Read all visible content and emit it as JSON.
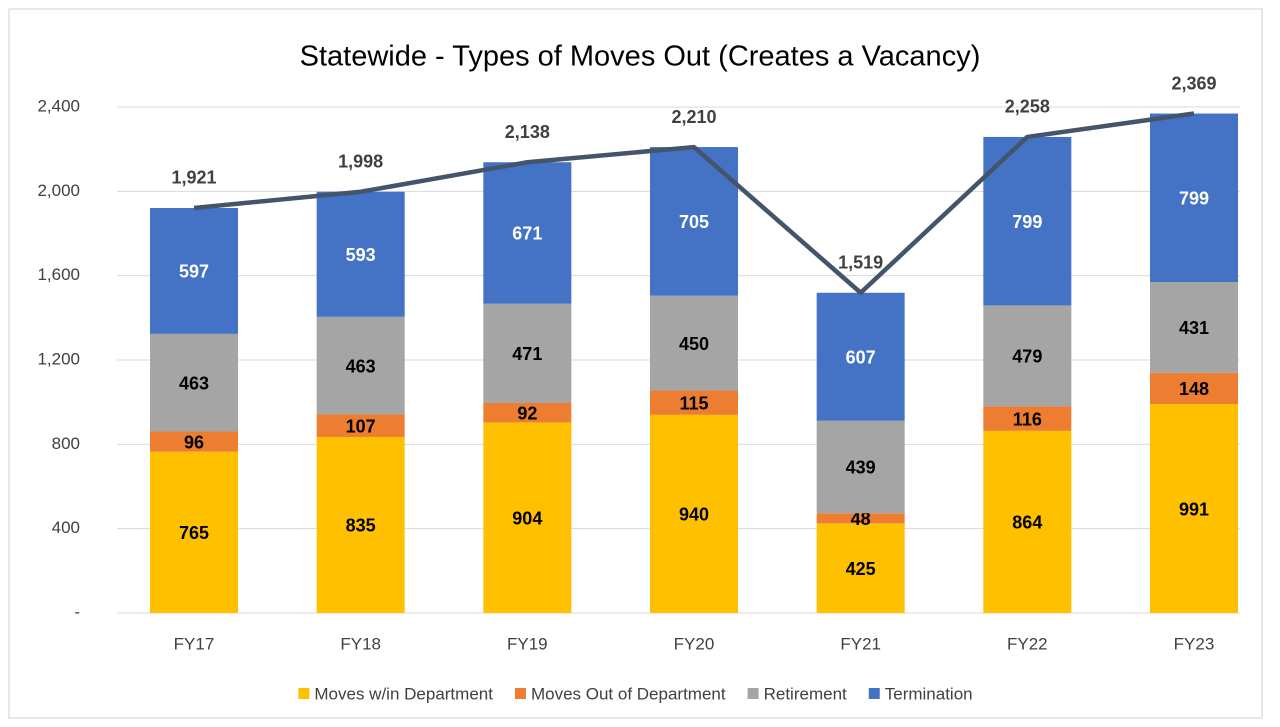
{
  "chart_data": {
    "type": "stacked-bar-line",
    "title": "Statewide - Types of Moves Out (Creates a Vacancy)",
    "categories": [
      "FY17",
      "FY18",
      "FY19",
      "FY20",
      "FY21",
      "FY22",
      "FY23"
    ],
    "series": [
      {
        "name": "Moves w/in Department",
        "color": "#ffc000",
        "values": [
          765,
          835,
          904,
          940,
          425,
          864,
          991
        ]
      },
      {
        "name": "Moves Out of Department",
        "color": "#ed7d31",
        "values": [
          96,
          107,
          92,
          115,
          48,
          116,
          148
        ]
      },
      {
        "name": "Retirement",
        "color": "#a5a5a5",
        "values": [
          463,
          463,
          471,
          450,
          439,
          479,
          431
        ]
      },
      {
        "name": "Termination",
        "color": "#4472c4",
        "values": [
          597,
          593,
          671,
          705,
          607,
          799,
          799
        ]
      }
    ],
    "total": {
      "color": "#44546a",
      "values": [
        1921,
        1998,
        2138,
        2210,
        1519,
        2258,
        2369
      ],
      "value_labels": [
        "1,921",
        "1,998",
        "2,138",
        "2,210",
        "1,519",
        "2,258",
        "2,369"
      ]
    },
    "ylim": [
      0,
      2400
    ],
    "yticks": [
      {
        "value": 0,
        "label": "-"
      },
      400,
      800,
      {
        "value": 1200,
        "label": "1,200"
      },
      {
        "value": 1600,
        "label": "1,600"
      },
      {
        "value": 2000,
        "label": "2,000"
      },
      {
        "value": 2400,
        "label": "2,400"
      }
    ],
    "grid": true,
    "legend": "bottom"
  }
}
